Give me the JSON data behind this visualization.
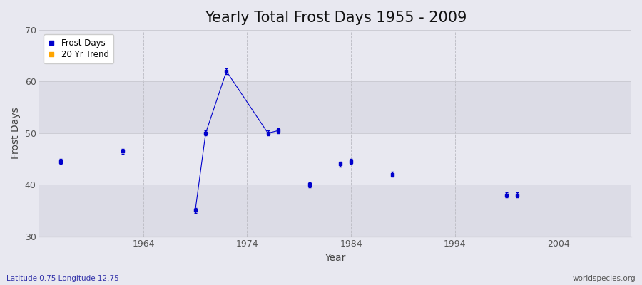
{
  "title": "Yearly Total Frost Days 1955 - 2009",
  "xlabel": "Year",
  "ylabel": "Frost Days",
  "xlim": [
    1954,
    2011
  ],
  "ylim": [
    30,
    70
  ],
  "yticks": [
    30,
    40,
    50,
    60,
    70
  ],
  "xticks": [
    1964,
    1974,
    1984,
    1994,
    2004
  ],
  "frost_days_x": [
    1956,
    1962,
    1969,
    1970,
    1972,
    1976,
    1977,
    1980,
    1983,
    1984,
    1988,
    1999,
    2000
  ],
  "frost_days_y": [
    44.5,
    46.5,
    35,
    50,
    62,
    50,
    50.5,
    40,
    44,
    44.5,
    42,
    38,
    38
  ],
  "cluster_line_x": [
    1969,
    1970,
    1972,
    1976,
    1977
  ],
  "cluster_line_y": [
    35,
    50,
    62,
    50,
    50.5
  ],
  "line_color": "#0000cc",
  "point_color": "#0000cc",
  "bg_color_light": "#ebebf0",
  "bg_color_dark": "#e0e0e8",
  "grid_h_color": "#d8d8d8",
  "grid_v_color": "#cccccc",
  "subtitle_left": "Latitude 0.75 Longitude 12.75",
  "subtitle_right": "worldspecies.org",
  "legend_frost_color": "#0000cc",
  "legend_trend_color": "#ffa500",
  "title_fontsize": 15,
  "axis_label_fontsize": 10,
  "tick_fontsize": 9,
  "band_ranges": [
    [
      30,
      40
    ],
    [
      50,
      60
    ],
    [
      70,
      80
    ]
  ],
  "light_band_ranges": [
    [
      40,
      50
    ],
    [
      60,
      70
    ]
  ]
}
